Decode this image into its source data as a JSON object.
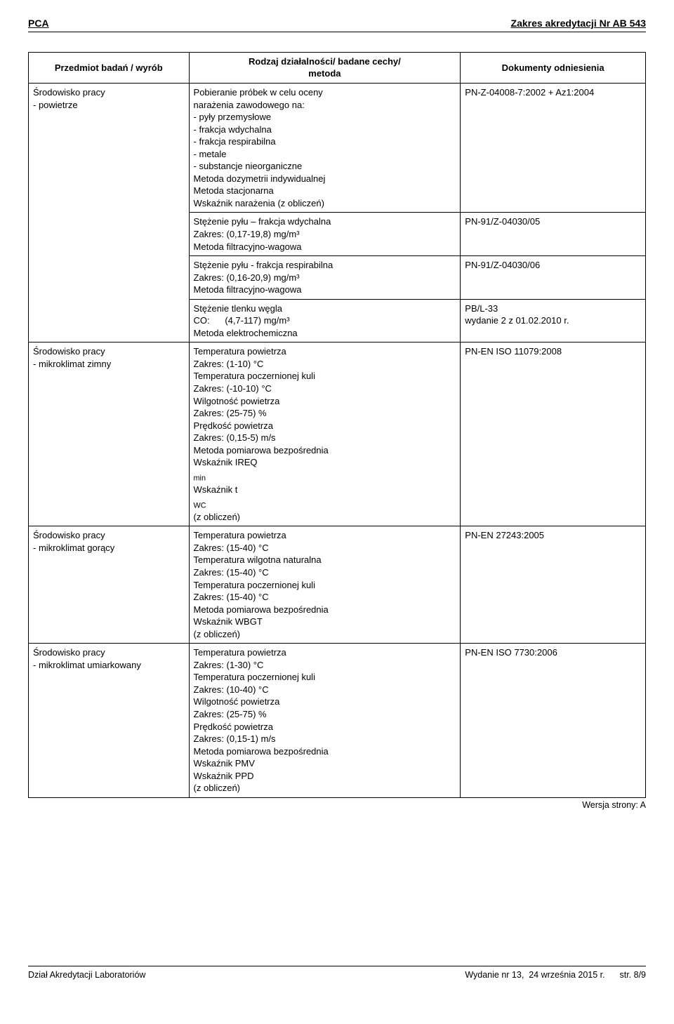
{
  "header": {
    "left": "PCA",
    "right": "Zakres akredytacji Nr AB 543"
  },
  "table": {
    "head": {
      "c1": "Przedmiot badań / wyrób",
      "c2_l1": "Rodzaj działalności/ badane cechy/",
      "c2_l2": "metoda",
      "c3": "Dokumenty odniesienia"
    },
    "r0": {
      "subject_l1": "Środowisko pracy",
      "subject_l2": "- powietrze",
      "m_l1": "Pobieranie próbek w celu oceny",
      "m_l2": "narażenia zawodowego na:",
      "m_l3": "- pyły przemysłowe",
      "m_l4": "- frakcja wdychalna",
      "m_l5": "- frakcja respirabilna",
      "m_l6": "- metale",
      "m_l7": "- substancje nieorganiczne",
      "m_l8": "Metoda dozymetrii indywidualnej",
      "m_l9": "Metoda stacjonarna",
      "m_l10": "Wskaźnik narażenia (z obliczeń)",
      "doc": "PN-Z-04008-7:2002 + Az1:2004"
    },
    "r1": {
      "m_l1": "Stężenie pyłu – frakcja wdychalna",
      "m_l2": "Zakres: (0,17-19,8) mg/m³",
      "m_l3": "Metoda filtracyjno-wagowa",
      "doc": "PN-91/Z-04030/05"
    },
    "r2": {
      "m_l1": "Stężenie pyłu  -  frakcja respirabilna",
      "m_l2": "Zakres: (0,16-20,9) mg/m³",
      "m_l3": "Metoda filtracyjno-wagowa",
      "doc": "PN-91/Z-04030/06"
    },
    "r3": {
      "m_l1": "Stężenie tlenku węgla",
      "m_l2": "CO:      (4,7-117) mg/m³",
      "m_l3": "Metoda elektrochemiczna",
      "doc_l1": "PB/L-33",
      "doc_l2": "wydanie 2 z 01.02.2010 r."
    },
    "r4": {
      "subject_l1": "Środowisko pracy",
      "subject_l2": "- mikroklimat zimny",
      "m_l1": "Temperatura powietrza",
      "m_l2": "Zakres: (1-10) °C",
      "m_l3": "Temperatura poczernionej kuli",
      "m_l4": "Zakres: (-10-10) °C",
      "m_l5": "Wilgotność powietrza",
      "m_l6": "Zakres: (25-75) %",
      "m_l7": "Prędkość powietrza",
      "m_l8": "Zakres: (0,15-5) m/s",
      "m_l9": "Metoda pomiarowa bezpośrednia",
      "m_l10a": "Wskaźnik IREQ",
      "m_l10b": "min",
      "m_l11a": "Wskaźnik t",
      "m_l11b": "WC",
      "m_l12": "(z obliczeń)",
      "doc": "PN-EN ISO 11079:2008"
    },
    "r5": {
      "subject_l1": "Środowisko pracy",
      "subject_l2": "- mikroklimat gorący",
      "m_l1": "Temperatura powietrza",
      "m_l2": "Zakres: (15-40) °C",
      "m_l3": "Temperatura wilgotna naturalna",
      "m_l4": "Zakres: (15-40) °C",
      "m_l5": "Temperatura poczernionej kuli",
      "m_l6": "Zakres: (15-40) °C",
      "m_l7": "Metoda pomiarowa bezpośrednia",
      "m_l8": "Wskaźnik WBGT",
      "m_l9": "(z obliczeń)",
      "doc": "PN-EN 27243:2005"
    },
    "r6": {
      "subject_l1": "Środowisko pracy",
      "subject_l2": "- mikroklimat umiarkowany",
      "m_l1": "Temperatura powietrza",
      "m_l2": "Zakres: (1-30)  °C",
      "m_l3": "Temperatura poczernionej kuli",
      "m_l4": "Zakres: (10-40)  °C",
      "m_l5": "Wilgotność powietrza",
      "m_l6": "Zakres: (25-75) %",
      "m_l7": "Prędkość powietrza",
      "m_l8": "Zakres: (0,15-1) m/s",
      "m_l9": "Metoda pomiarowa bezpośrednia",
      "m_l10": "Wskaźnik PMV",
      "m_l11": "Wskaźnik PPD",
      "m_l12": "(z obliczeń)",
      "doc": "PN-EN ISO 7730:2006"
    }
  },
  "version": "Wersja strony: A",
  "footer": {
    "left": "Dział Akredytacji Laboratoriów",
    "right": "Wydanie nr 13,  24 września 2015 r.      str. 8/9"
  }
}
